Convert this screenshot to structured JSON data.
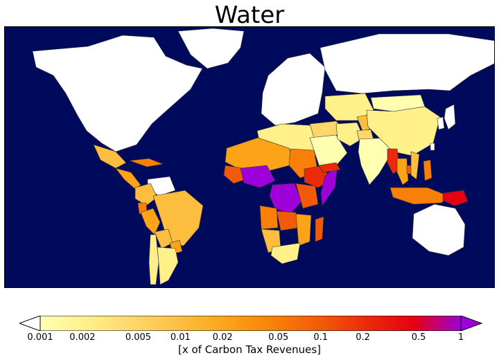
{
  "title": "Water",
  "colors": {
    "ocean": "#000a5c",
    "no_data": "#ffffff",
    "border": "#333333",
    "scale": [
      "#ffffb2",
      "#fff08a",
      "#fed76a",
      "#fdbe40",
      "#fca318",
      "#f98008",
      "#f25a08",
      "#ea2a0a",
      "#e60012",
      "#9d00d8"
    ],
    "over": "#9d00d8",
    "under": "#ffffff",
    "gray_region": "#808080"
  },
  "colorbar": {
    "label": "[x of Carbon Tax Revenues]",
    "ticks": [
      "0.001",
      "0.002",
      "0.005",
      "0.01",
      "0.02",
      "0.05",
      "0.1",
      "0.2",
      "0.5",
      "1"
    ],
    "tick_values": [
      0.001,
      0.002,
      0.005,
      0.01,
      0.02,
      0.05,
      0.1,
      0.2,
      0.5,
      1
    ],
    "scale": "log",
    "range": [
      0.001,
      1
    ],
    "extend": "both"
  },
  "regions": [
    {
      "name": "North America",
      "level": "none"
    },
    {
      "name": "Greenland",
      "level": "none"
    },
    {
      "name": "Europe",
      "level": "none"
    },
    {
      "name": "Russia",
      "level": "none"
    },
    {
      "name": "Australia",
      "level": "none"
    },
    {
      "name": "Mexico",
      "level": 3
    },
    {
      "name": "Central America",
      "level": 4
    },
    {
      "name": "Caribbean",
      "level": 5
    },
    {
      "name": "Venezuela",
      "level": "none"
    },
    {
      "name": "Colombia",
      "level": 3
    },
    {
      "name": "Ecuador",
      "level": 5
    },
    {
      "name": "Peru",
      "level": 4
    },
    {
      "name": "Brazil",
      "level": 3
    },
    {
      "name": "Bolivia",
      "level": 3
    },
    {
      "name": "Paraguay",
      "level": 4
    },
    {
      "name": "Chile",
      "level": 1
    },
    {
      "name": "Argentina",
      "level": 1
    },
    {
      "name": "North Africa",
      "level": 1
    },
    {
      "name": "Sahel",
      "level": 4
    },
    {
      "name": "Sudan",
      "level": 5
    },
    {
      "name": "West Africa",
      "level": 6
    },
    {
      "name": "Central Africa",
      "level": 9
    },
    {
      "name": "Ethiopia",
      "level": 7
    },
    {
      "name": "Somalia",
      "level": 9
    },
    {
      "name": "DR Congo",
      "level": 9
    },
    {
      "name": "East Africa",
      "level": 6
    },
    {
      "name": "Angola",
      "level": 5
    },
    {
      "name": "Zambia",
      "level": 6
    },
    {
      "name": "Mozambique",
      "level": 4
    },
    {
      "name": "Namibia",
      "level": 3
    },
    {
      "name": "South Africa",
      "level": 1
    },
    {
      "name": "Madagascar",
      "level": 6
    },
    {
      "name": "Middle East",
      "level": 2
    },
    {
      "name": "Saudi Arabia",
      "level": 0
    },
    {
      "name": "Yemen",
      "level": 7
    },
    {
      "name": "Iran",
      "level": 1
    },
    {
      "name": "Central Asia",
      "level": 1
    },
    {
      "name": "Afghanistan",
      "level": 3
    },
    {
      "name": "Pakistan",
      "level": 2
    },
    {
      "name": "India",
      "level": 0
    },
    {
      "name": "Mongolia",
      "level": 0
    },
    {
      "name": "China",
      "level": 1
    },
    {
      "name": "Myanmar",
      "level": 7
    },
    {
      "name": "Thailand",
      "level": 4
    },
    {
      "name": "Cambodia",
      "level": 6
    },
    {
      "name": "Vietnam",
      "level": 3
    },
    {
      "name": "Philippines",
      "level": 5
    },
    {
      "name": "Indonesia",
      "level": 5
    },
    {
      "name": "Papua New Guinea",
      "level": 8
    },
    {
      "name": "Japan",
      "level": "none"
    },
    {
      "name": "Korea",
      "level": "none"
    },
    {
      "name": "Taiwan",
      "level": "none"
    }
  ]
}
